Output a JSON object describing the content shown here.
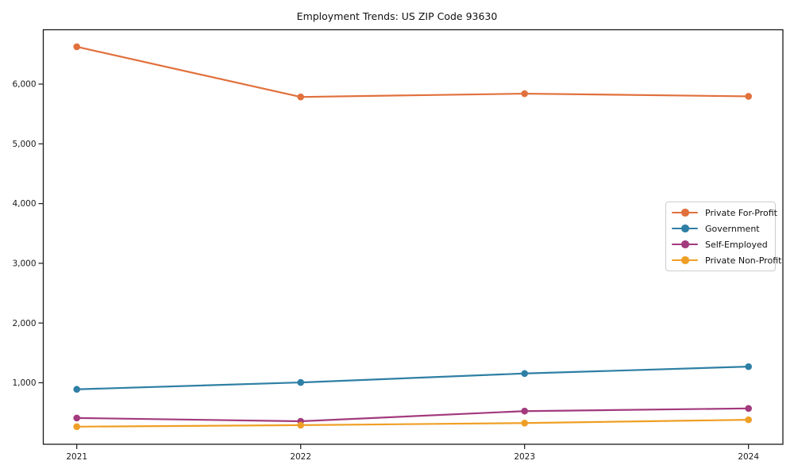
{
  "title": "Employment Trends: US ZIP Code 93630",
  "chart_data": {
    "type": "line",
    "categories": [
      "2021",
      "2022",
      "2023",
      "2024"
    ],
    "series": [
      {
        "name": "Private For-Profit",
        "color": "#e1703c",
        "values": [
          6625,
          5785,
          5840,
          5795
        ]
      },
      {
        "name": "Government",
        "color": "#2e7fa5",
        "values": [
          890,
          1005,
          1155,
          1270
        ]
      },
      {
        "name": "Self-Employed",
        "color": "#a23a7d",
        "values": [
          410,
          355,
          525,
          570
        ]
      },
      {
        "name": "Private Non-Profit",
        "color": "#ef9f26",
        "values": [
          265,
          290,
          325,
          380
        ]
      }
    ],
    "yticks": [
      {
        "value": 1000,
        "label": "1,000"
      },
      {
        "value": 2000,
        "label": "2,000"
      },
      {
        "value": 3000,
        "label": "3,000"
      },
      {
        "value": 4000,
        "label": "4,000"
      },
      {
        "value": 5000,
        "label": "5,000"
      },
      {
        "value": 6000,
        "label": "6,000"
      }
    ],
    "ylim": [
      -30,
      6910
    ],
    "xlabel": "",
    "ylabel": "",
    "legend_position": "center-right",
    "grid": false,
    "marker": "circle",
    "axis_color": "#1a1a1a",
    "tick_label_color": "#1a1a1a"
  }
}
